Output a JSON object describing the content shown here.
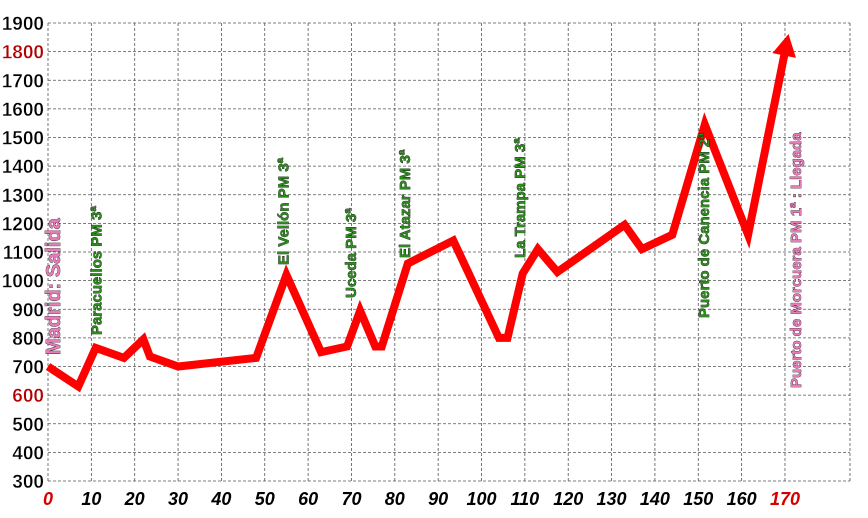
{
  "chart_data": {
    "type": "line",
    "title": "",
    "xlabel": "",
    "ylabel": "",
    "xlim": [
      0,
      185
    ],
    "ylim": [
      300,
      1900
    ],
    "grid": true,
    "x_ticks": [
      "0",
      "10",
      "20",
      "30",
      "40",
      "50",
      "60",
      "70",
      "80",
      "90",
      "100",
      "110",
      "120",
      "130",
      "140",
      "150",
      "160",
      "170"
    ],
    "y_ticks": [
      "300",
      "400",
      "500",
      "600",
      "700",
      "800",
      "900",
      "1000",
      "1100",
      "1200",
      "1300",
      "1400",
      "1500",
      "1600",
      "1700",
      "1800",
      "1900"
    ],
    "highlight_x_ticks": [
      "0",
      "170"
    ],
    "highlight_y_ticks": [
      "600",
      "1800"
    ],
    "series": [
      {
        "color": "#ff0000",
        "points": [
          [
            0,
            700
          ],
          [
            7,
            630
          ],
          [
            11,
            765
          ],
          [
            17.5,
            730
          ],
          [
            22,
            795
          ],
          [
            23.5,
            735
          ],
          [
            30,
            700
          ],
          [
            48,
            730
          ],
          [
            55,
            1020
          ],
          [
            63,
            750
          ],
          [
            69,
            770
          ],
          [
            72,
            895
          ],
          [
            75.5,
            770
          ],
          [
            77,
            770
          ],
          [
            83,
            1060
          ],
          [
            93.5,
            1140
          ],
          [
            104,
            800
          ],
          [
            106,
            800
          ],
          [
            109.5,
            1025
          ],
          [
            113,
            1110
          ],
          [
            117.5,
            1030
          ],
          [
            133,
            1195
          ],
          [
            137,
            1110
          ],
          [
            144,
            1160
          ],
          [
            151.5,
            1545
          ],
          [
            161.5,
            1160
          ],
          [
            170,
            1800
          ]
        ]
      }
    ],
    "annotations": [
      {
        "text": "Madrid: Salida",
        "color": "pink",
        "x": 0
      },
      {
        "text": "Paracuellos PM 3ª",
        "color": "green",
        "x": 11
      },
      {
        "text": "El Vellón PM 3ª",
        "color": "green",
        "x": 55
      },
      {
        "text": "Uceda PM 3ª",
        "color": "green",
        "x": 72
      },
      {
        "text": "El Atazar PM 3ª",
        "color": "green",
        "x": 83
      },
      {
        "text": "La Trampa PM 3ª",
        "color": "green",
        "x": 110
      },
      {
        "text": "Puerto de Canencia PM 2ª",
        "color": "green",
        "x": 151.5
      },
      {
        "text": "Puerto de Morcuera PM 1ª : Llegada",
        "color": "pink",
        "x": 170
      }
    ]
  }
}
